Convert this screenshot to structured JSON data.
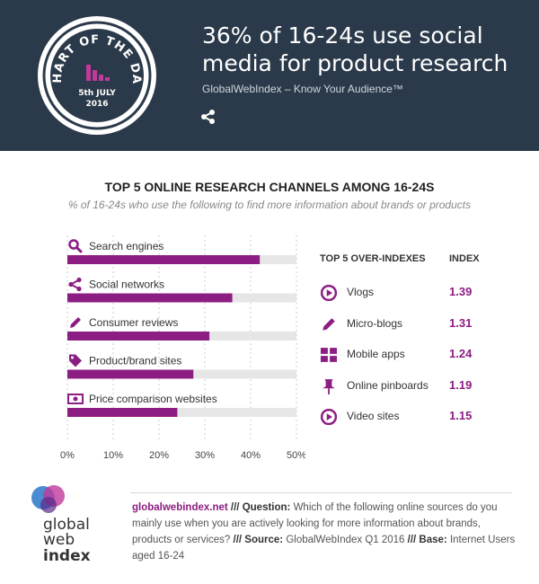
{
  "header": {
    "badge_top": "CHART OF THE DAY",
    "badge_date": "5th JULY",
    "badge_year": "2016",
    "title_line1": "36% of 16-24s use social",
    "title_line2": "media for product research",
    "subtitle": "GlobalWebIndex – Know Your Audience™",
    "share_icon": "share-icon"
  },
  "colors": {
    "header_bg": "#2b3a4a",
    "accent": "#8c1d82",
    "track": "#e6e6e6"
  },
  "chart_data": {
    "type": "bar",
    "orientation": "horizontal",
    "title": "TOP 5 ONLINE RESEARCH CHANNELS AMONG 16-24S",
    "subtitle": "% of 16-24s who use the following to find more information about brands or products",
    "categories": [
      "Search engines",
      "Social networks",
      "Consumer reviews",
      "Product/brand sites",
      "Price comparison websites"
    ],
    "icons": [
      "search-icon",
      "share-icon",
      "pencil-icon",
      "tag-icon",
      "money-icon"
    ],
    "values": [
      42,
      36,
      31,
      27.5,
      24
    ],
    "xlim": [
      0,
      50
    ],
    "xticks": [
      "0%",
      "10%",
      "20%",
      "30%",
      "40%",
      "50%"
    ],
    "grid": true
  },
  "over_indexes": {
    "header_label": "TOP 5 OVER-INDEXES",
    "header_index": "INDEX",
    "rows": [
      {
        "label": "Vlogs",
        "value": "1.39",
        "icon": "play-icon"
      },
      {
        "label": "Micro-blogs",
        "value": "1.31",
        "icon": "pencil-icon"
      },
      {
        "label": "Mobile apps",
        "value": "1.24",
        "icon": "grid-icon"
      },
      {
        "label": "Online pinboards",
        "value": "1.19",
        "icon": "pin-icon"
      },
      {
        "label": "Video sites",
        "value": "1.15",
        "icon": "play-icon"
      }
    ]
  },
  "footer": {
    "logo_line1": "global",
    "logo_line2": "web",
    "logo_line3": "index",
    "site": "globalwebindex.net",
    "q_label": "/// Question:",
    "question": "Which of the following online sources do you mainly use when you are actively looking for more information about brands, products or services?",
    "src_label": "/// Source:",
    "source": "GlobalWebIndex Q1 2016",
    "base_label": "/// Base:",
    "base": "Internet Users aged 16-24"
  }
}
